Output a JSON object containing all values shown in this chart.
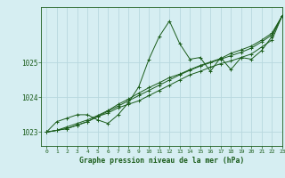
{
  "title": "Graphe pression niveau de la mer (hPa)",
  "bg_color": "#d6eef2",
  "grid_color": "#b8d8de",
  "line_color": "#1a5c1a",
  "text_color": "#1a5c1a",
  "xlim": [
    -0.5,
    23
  ],
  "ylim": [
    1022.6,
    1026.6
  ],
  "yticks": [
    1023,
    1024,
    1025
  ],
  "xticks": [
    0,
    1,
    2,
    3,
    4,
    5,
    6,
    7,
    8,
    9,
    10,
    11,
    12,
    13,
    14,
    15,
    16,
    17,
    18,
    19,
    20,
    21,
    22,
    23
  ],
  "line1_x": [
    0,
    1,
    2,
    3,
    4,
    5,
    6,
    7,
    8,
    9,
    10,
    11,
    12,
    13,
    14,
    15,
    16,
    17,
    18,
    19,
    20,
    21,
    22,
    23
  ],
  "line1_y": [
    1023.0,
    1023.3,
    1023.4,
    1023.5,
    1023.5,
    1023.35,
    1023.25,
    1023.5,
    1023.85,
    1024.3,
    1025.1,
    1025.75,
    1026.2,
    1025.55,
    1025.1,
    1025.15,
    1024.75,
    1025.15,
    1024.8,
    1025.15,
    1025.1,
    1025.35,
    1025.75,
    1026.35
  ],
  "line2_x": [
    0,
    1,
    2,
    3,
    4,
    5,
    6,
    7,
    8,
    9,
    10,
    11,
    12,
    13,
    14,
    15,
    16,
    17,
    18,
    19,
    20,
    21,
    22,
    23
  ],
  "line2_y": [
    1023.0,
    1023.05,
    1023.1,
    1023.2,
    1023.3,
    1023.45,
    1023.55,
    1023.7,
    1023.8,
    1023.9,
    1024.05,
    1024.2,
    1024.35,
    1024.5,
    1024.65,
    1024.75,
    1024.87,
    1024.97,
    1025.05,
    1025.15,
    1025.25,
    1025.45,
    1025.65,
    1026.35
  ],
  "line3_x": [
    0,
    1,
    2,
    3,
    4,
    5,
    6,
    7,
    8,
    9,
    10,
    11,
    12,
    13,
    14,
    15,
    16,
    17,
    18,
    19,
    20,
    21,
    22,
    23
  ],
  "line3_y": [
    1023.0,
    1023.05,
    1023.1,
    1023.2,
    1023.3,
    1023.45,
    1023.6,
    1023.75,
    1023.9,
    1024.05,
    1024.2,
    1024.35,
    1024.5,
    1024.65,
    1024.78,
    1024.9,
    1025.0,
    1025.1,
    1025.2,
    1025.3,
    1025.42,
    1025.6,
    1025.8,
    1026.35
  ],
  "line4_x": [
    0,
    1,
    2,
    3,
    4,
    5,
    6,
    7,
    8,
    9,
    10,
    11,
    12,
    13,
    14,
    15,
    16,
    17,
    18,
    19,
    20,
    21,
    22,
    23
  ],
  "line4_y": [
    1023.0,
    1023.05,
    1023.15,
    1023.25,
    1023.35,
    1023.48,
    1023.62,
    1023.8,
    1023.95,
    1024.12,
    1024.28,
    1024.42,
    1024.57,
    1024.67,
    1024.8,
    1024.92,
    1025.02,
    1025.12,
    1025.27,
    1025.37,
    1025.48,
    1025.65,
    1025.85,
    1026.35
  ]
}
